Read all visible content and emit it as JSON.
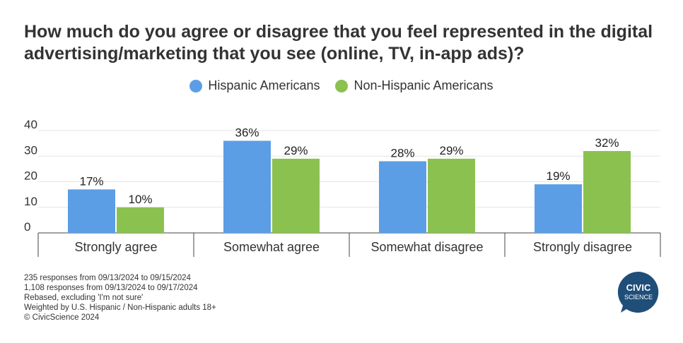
{
  "title": "How much do you agree or disagree that you feel represented in the digital advertising/marketing that you see (online, TV, in-app ads)?",
  "colors": {
    "hispanic": "#5c9ee6",
    "non_hispanic": "#8bc14f",
    "grid": "#e5e5e5",
    "axis": "#444444"
  },
  "chart_data": {
    "type": "bar",
    "title": "How much do you agree or disagree that you feel represented in the digital advertising/marketing that you see (online, TV, in-app ads)?",
    "categories": [
      "Strongly agree",
      "Somewhat agree",
      "Somewhat disagree",
      "Strongly disagree"
    ],
    "series": [
      {
        "name": "Hispanic Americans",
        "values": [
          17,
          36,
          28,
          19
        ],
        "labels": [
          "17%",
          "36%",
          "28%",
          "19%"
        ],
        "color": "#5c9ee6"
      },
      {
        "name": "Non-Hispanic Americans",
        "values": [
          10,
          29,
          29,
          32
        ],
        "labels": [
          "10%",
          "29%",
          "29%",
          "32%"
        ],
        "color": "#8bc14f"
      }
    ],
    "yticks": [
      "0",
      "10",
      "20",
      "30",
      "40"
    ],
    "ylim": [
      0,
      40
    ],
    "grid": true,
    "legend": "top-center"
  },
  "footnotes": [
    "235 responses from 09/13/2024 to 09/15/2024",
    "1,108 responses from 09/13/2024 to 09/17/2024",
    "Rebased, excluding 'I'm not sure'",
    "Weighted by U.S. Hispanic / Non-Hispanic adults 18+",
    "© CivicScience 2024"
  ],
  "logo": {
    "line1": "CIVIC",
    "line2": "SCIENCE",
    "color": "#1f4e79"
  }
}
